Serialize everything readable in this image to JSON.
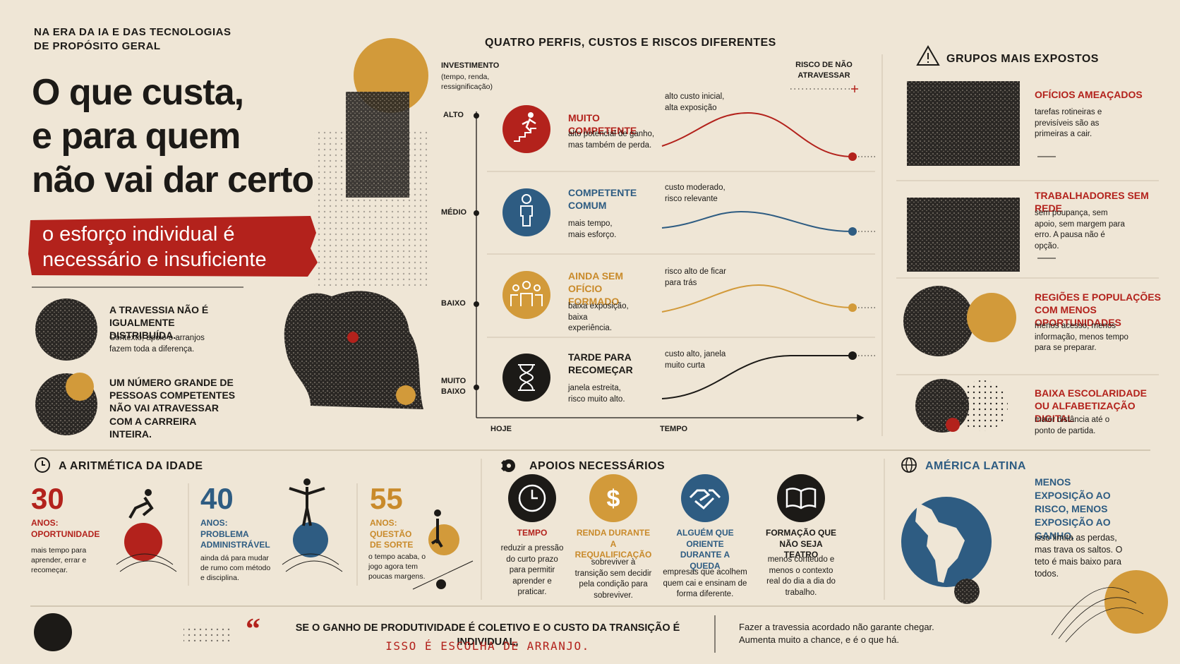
{
  "header": {
    "kicker": "NA ERA DA IA E DAS TECNOLOGIAS DE PROPÓSITO GERAL",
    "title_lines": [
      "O que custa,",
      "e para quem",
      "não vai dar certo"
    ],
    "highlight_lines": [
      "o esforço individual é",
      "necessário e insuficiente"
    ]
  },
  "intro": [
    {
      "title": "A TRAVESSIA NÃO É IGUALMENTE DISTRIBUÍDA.",
      "text": "Contexto, apoio e arranjos fazem toda a diferença."
    },
    {
      "title": "UM NÚMERO GRANDE DE PESSOAS COMPETENTES NÃO VAI ATRAVESSAR COM A CARREIRA INTEIRA."
    }
  ],
  "profiles": {
    "title": "QUATRO PERFIS, CUSTOS E RISCOS DIFERENTES",
    "axis_title": "INVESTIMENTO",
    "axis_subtitle": "(tempo, renda, ressignificação)",
    "risk_label": "RISCO DE NÃO ATRAVESSAR",
    "levels": [
      "ALTO",
      "MÉDIO",
      "BAIXO",
      "MUITO BAIXO"
    ],
    "x_labels": [
      "HOJE",
      "TEMPO"
    ],
    "items": [
      {
        "name": "MUITO COMPETENTE",
        "text": "alto potencial de ganho, mas também de perda.",
        "note": "alto custo inicial, alta exposição"
      },
      {
        "name": "COMPETENTE COMUM",
        "text": "mais tempo, mais esforço.",
        "note": "custo moderado, risco relevante"
      },
      {
        "name": "AINDA SEM OFÍCIO FORMADO",
        "text": "baixa exposição, baixa experiência.",
        "note": "risco alto de ficar para trás"
      },
      {
        "name": "TARDE PARA RECOMEÇAR",
        "text": "janela estreita, risco muito alto.",
        "note": "custo alto, janela muito curta"
      }
    ]
  },
  "groups": {
    "title": "GRUPOS MAIS EXPOSTOS",
    "items": [
      {
        "name": "OFÍCIOS AMEAÇADOS",
        "text": "tarefas rotineiras e previsíveis são as primeiras a cair."
      },
      {
        "name": "TRABALHADORES SEM REDE",
        "text": "sem poupança, sem apoio, sem margem para erro. A pausa não é opção."
      },
      {
        "name": "REGIÕES E POPULAÇÕES COM MENOS OPORTUNIDADES",
        "text": "menos acesso, menos informação, menos tempo para se preparar."
      },
      {
        "name": "BAIXA ESCOLARIDADE OU ALFABETIZAÇÃO DIGITAL",
        "text": "maior distância até o ponto de partida."
      }
    ]
  },
  "age": {
    "title": "A ARITMÉTICA DA IDADE",
    "items": [
      {
        "age": 30,
        "label": "ANOS: OPORTUNIDADE",
        "text": "mais tempo para aprender, errar e recomeçar."
      },
      {
        "age": 40,
        "label": "ANOS: PROBLEMA ADMINISTRÁVEL",
        "text": "ainda dá para mudar de rumo com método e disciplina."
      },
      {
        "age": 55,
        "label": "ANOS: QUESTÃO DE SORTE",
        "text": "o tempo acaba, o jogo agora tem poucas margens."
      }
    ]
  },
  "supports": {
    "title": "APOIOS NECESSÁRIOS",
    "items": [
      {
        "name": "TEMPO",
        "text": "reduzir a pressão do curto prazo para permitir aprender e praticar."
      },
      {
        "name": "RENDA DURANTE A REQUALIFICAÇÃO",
        "text": "sobreviver à transição sem decidir pela condição para sobreviver."
      },
      {
        "name": "ALGUÉM QUE ORIENTE DURANTE A QUEDA",
        "text": "empresas que acolhem quem cai e ensinam de forma diferente."
      },
      {
        "name": "FORMAÇÃO QUE NÃO SEJA TEATRO",
        "text": "menos conteúdo e menos o contexto real do dia a dia do trabalho."
      }
    ]
  },
  "latin_america": {
    "title": "AMÉRICA LATINA",
    "heading": "MENOS EXPOSIÇÃO AO RISCO, MENOS EXPOSIÇÃO AO GANHO.",
    "text": "isso limita as perdas, mas trava os saltos. O teto é mais baixo para todos."
  },
  "footer": {
    "quote_mark": "“",
    "quote": "SE O GANHO DE PRODUTIVIDADE É COLETIVO E O CUSTO DA TRANSIÇÃO É INDIVIDUAL,",
    "emphasis": "ISSO É ESCOLHA DE ARRANJO.",
    "closing": "Fazer a travessia acordado não garante chegar. Aumenta muito a chance, e é o que há."
  }
}
